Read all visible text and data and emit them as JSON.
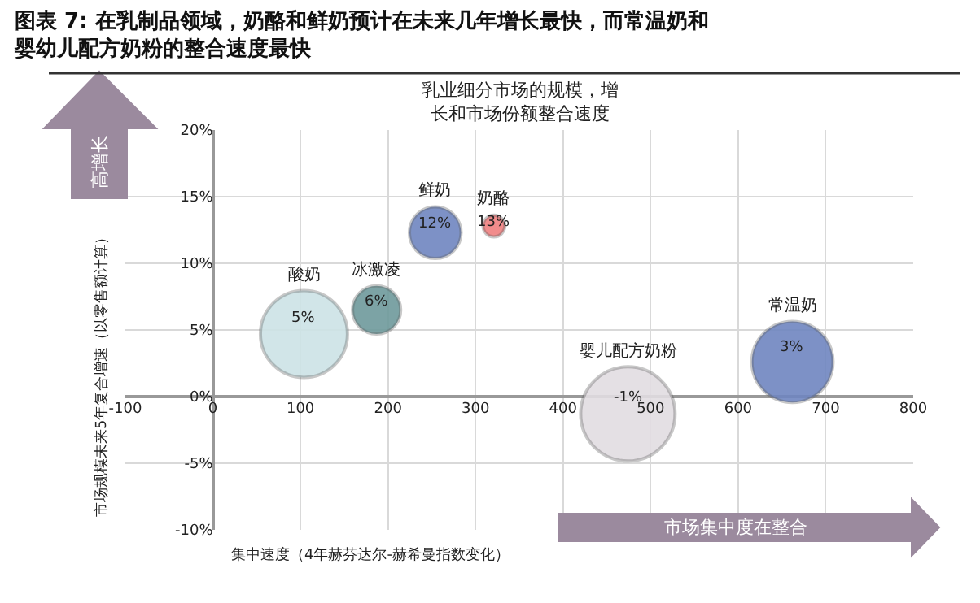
{
  "chart_data": {
    "type": "bubble",
    "title": "图表 7: 在乳制品领域，奶酪和鲜奶预计在未来几年增长最快，而常温奶和婴幼儿配方奶粉的整合速度最快",
    "subtitle": "乳业细分市场的规模，增长和市场份额整合速度",
    "xlabel": "集中速度（4年赫芬达尔-赫希曼指数变化）",
    "ylabel": "市场规模未来5年复合增速（以零售额计算）",
    "annotations": [
      "高增长",
      "市场集中度在整合"
    ],
    "xlim": [
      -100,
      800
    ],
    "xticks": [
      -100,
      0,
      100,
      200,
      300,
      400,
      500,
      600,
      700,
      800
    ],
    "ylim": [
      -10,
      20
    ],
    "yticks": [
      {
        "value": -10,
        "label": "-10%"
      },
      {
        "value": -5,
        "label": "-5%"
      },
      {
        "value": 0,
        "label": "0%"
      },
      {
        "value": 5,
        "label": "5%"
      },
      {
        "value": 10,
        "label": "10%"
      },
      {
        "value": 15,
        "label": "15%"
      },
      {
        "value": 20,
        "label": "20%"
      }
    ],
    "grid": true,
    "legend": false,
    "series": [
      {
        "name": "酸奶",
        "color": "#cde3e6",
        "x": [
          104
        ],
        "values": [
          4.7
        ],
        "sizes": [
          0.85
        ],
        "value_labels": [
          "5%"
        ]
      },
      {
        "name": "冰激凌",
        "color": "#6e9a9c",
        "x": [
          187
        ],
        "values": [
          6.5
        ],
        "sizes": [
          0.26
        ],
        "value_labels": [
          "6%"
        ]
      },
      {
        "name": "鲜奶",
        "color": "#6f86c0",
        "x": [
          254
        ],
        "values": [
          12.3
        ],
        "sizes": [
          0.3
        ],
        "value_labels": [
          "12%"
        ]
      },
      {
        "name": "奶酪",
        "color": "#f08080",
        "x": [
          321
        ],
        "values": [
          12.8
        ],
        "sizes": [
          0.053
        ],
        "value_labels": [
          "13%"
        ]
      },
      {
        "name": "婴儿配方奶粉",
        "color": "#e2dde2",
        "x": [
          474
        ],
        "values": [
          -1.3
        ],
        "sizes": [
          1
        ],
        "value_labels": [
          "-1%"
        ]
      },
      {
        "name": "常温奶",
        "color": "#6f86c0",
        "x": [
          662
        ],
        "values": [
          2.6
        ],
        "sizes": [
          0.74
        ],
        "value_labels": [
          "3%"
        ]
      }
    ]
  }
}
